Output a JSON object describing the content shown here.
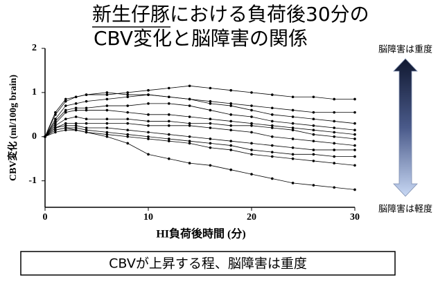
{
  "chart_data": {
    "type": "line",
    "title_lines": [
      "新生仔豚における負荷後30分の",
      "CBV変化と脳障害の関係"
    ],
    "xlabel": "HI負荷後時間 (分)",
    "ylabel": "CBV変化 (ml/100g brain)",
    "severity_high": "脳障害は重度",
    "severity_low": "脳障害は軽度",
    "conclusion": "CBVが上昇する程、脳障害は重度",
    "x": [
      0,
      1,
      2,
      3,
      4,
      6,
      8,
      10,
      12,
      14,
      16,
      18,
      20,
      22,
      24,
      26,
      28,
      30
    ],
    "xlim": [
      0,
      30
    ],
    "xticks": [
      0,
      10,
      20,
      30
    ],
    "ylim": [
      -1.6,
      2
    ],
    "yticks": [
      -1,
      0,
      1,
      2
    ],
    "grid": false,
    "series": [
      {
        "color": "#000000",
        "values": [
          0,
          0.5,
          0.8,
          0.9,
          0.95,
          0.95,
          1.0,
          1.05,
          1.1,
          1.15,
          1.1,
          1.05,
          1.0,
          0.95,
          0.9,
          0.9,
          0.85,
          0.85
        ]
      },
      {
        "color": "#000000",
        "values": [
          0,
          0.55,
          0.85,
          0.9,
          0.95,
          1.0,
          0.95,
          0.95,
          0.9,
          0.85,
          0.8,
          0.75,
          0.7,
          0.65,
          0.6,
          0.55,
          0.55,
          0.55
        ]
      },
      {
        "color": "#000000",
        "values": [
          0,
          0.4,
          0.7,
          0.75,
          0.8,
          0.85,
          0.9,
          0.95,
          0.9,
          0.85,
          0.75,
          0.7,
          0.6,
          0.5,
          0.45,
          0.4,
          0.35,
          0.3
        ]
      },
      {
        "color": "#000000",
        "values": [
          0,
          0.35,
          0.6,
          0.65,
          0.65,
          0.7,
          0.7,
          0.75,
          0.75,
          0.7,
          0.6,
          0.5,
          0.45,
          0.35,
          0.3,
          0.25,
          0.2,
          0.15
        ]
      },
      {
        "color": "#000000",
        "values": [
          0,
          0.3,
          0.55,
          0.6,
          0.6,
          0.6,
          0.55,
          0.5,
          0.5,
          0.45,
          0.4,
          0.35,
          0.3,
          0.25,
          0.2,
          0.15,
          0.1,
          0.05
        ]
      },
      {
        "color": "#000000",
        "values": [
          0,
          0.25,
          0.4,
          0.45,
          0.4,
          0.4,
          0.4,
          0.35,
          0.35,
          0.3,
          0.3,
          0.25,
          0.25,
          0.2,
          0.15,
          0.05,
          0,
          -0.05
        ]
      },
      {
        "color": "#000000",
        "values": [
          0,
          0.2,
          0.3,
          0.3,
          0.3,
          0.3,
          0.3,
          0.25,
          0.25,
          0.25,
          0.2,
          0.15,
          0.1,
          0,
          -0.05,
          -0.1,
          -0.15,
          -0.2
        ]
      },
      {
        "color": "#000000",
        "values": [
          0,
          0.2,
          0.25,
          0.25,
          0.2,
          0.2,
          0.15,
          0.1,
          0.05,
          0,
          -0.05,
          -0.1,
          -0.15,
          -0.2,
          -0.25,
          -0.3,
          -0.3,
          -0.3
        ]
      },
      {
        "color": "#000000",
        "values": [
          0,
          0.15,
          0.2,
          0.2,
          0.15,
          0.1,
          0.05,
          0,
          -0.05,
          -0.1,
          -0.15,
          -0.2,
          -0.3,
          -0.35,
          -0.4,
          -0.4,
          -0.45,
          -0.45
        ]
      },
      {
        "color": "#000000",
        "values": [
          0,
          0.1,
          0.15,
          0.15,
          0.1,
          0.05,
          0,
          -0.05,
          -0.1,
          -0.15,
          -0.25,
          -0.3,
          -0.4,
          -0.45,
          -0.5,
          -0.55,
          -0.6,
          -0.65
        ]
      },
      {
        "color": "#000000",
        "values": [
          0,
          0.15,
          0.2,
          0.15,
          0.1,
          0,
          -0.15,
          -0.4,
          -0.5,
          -0.6,
          -0.65,
          -0.75,
          -0.85,
          -0.95,
          -1.05,
          -1.1,
          -1.15,
          -1.2
        ]
      }
    ]
  }
}
